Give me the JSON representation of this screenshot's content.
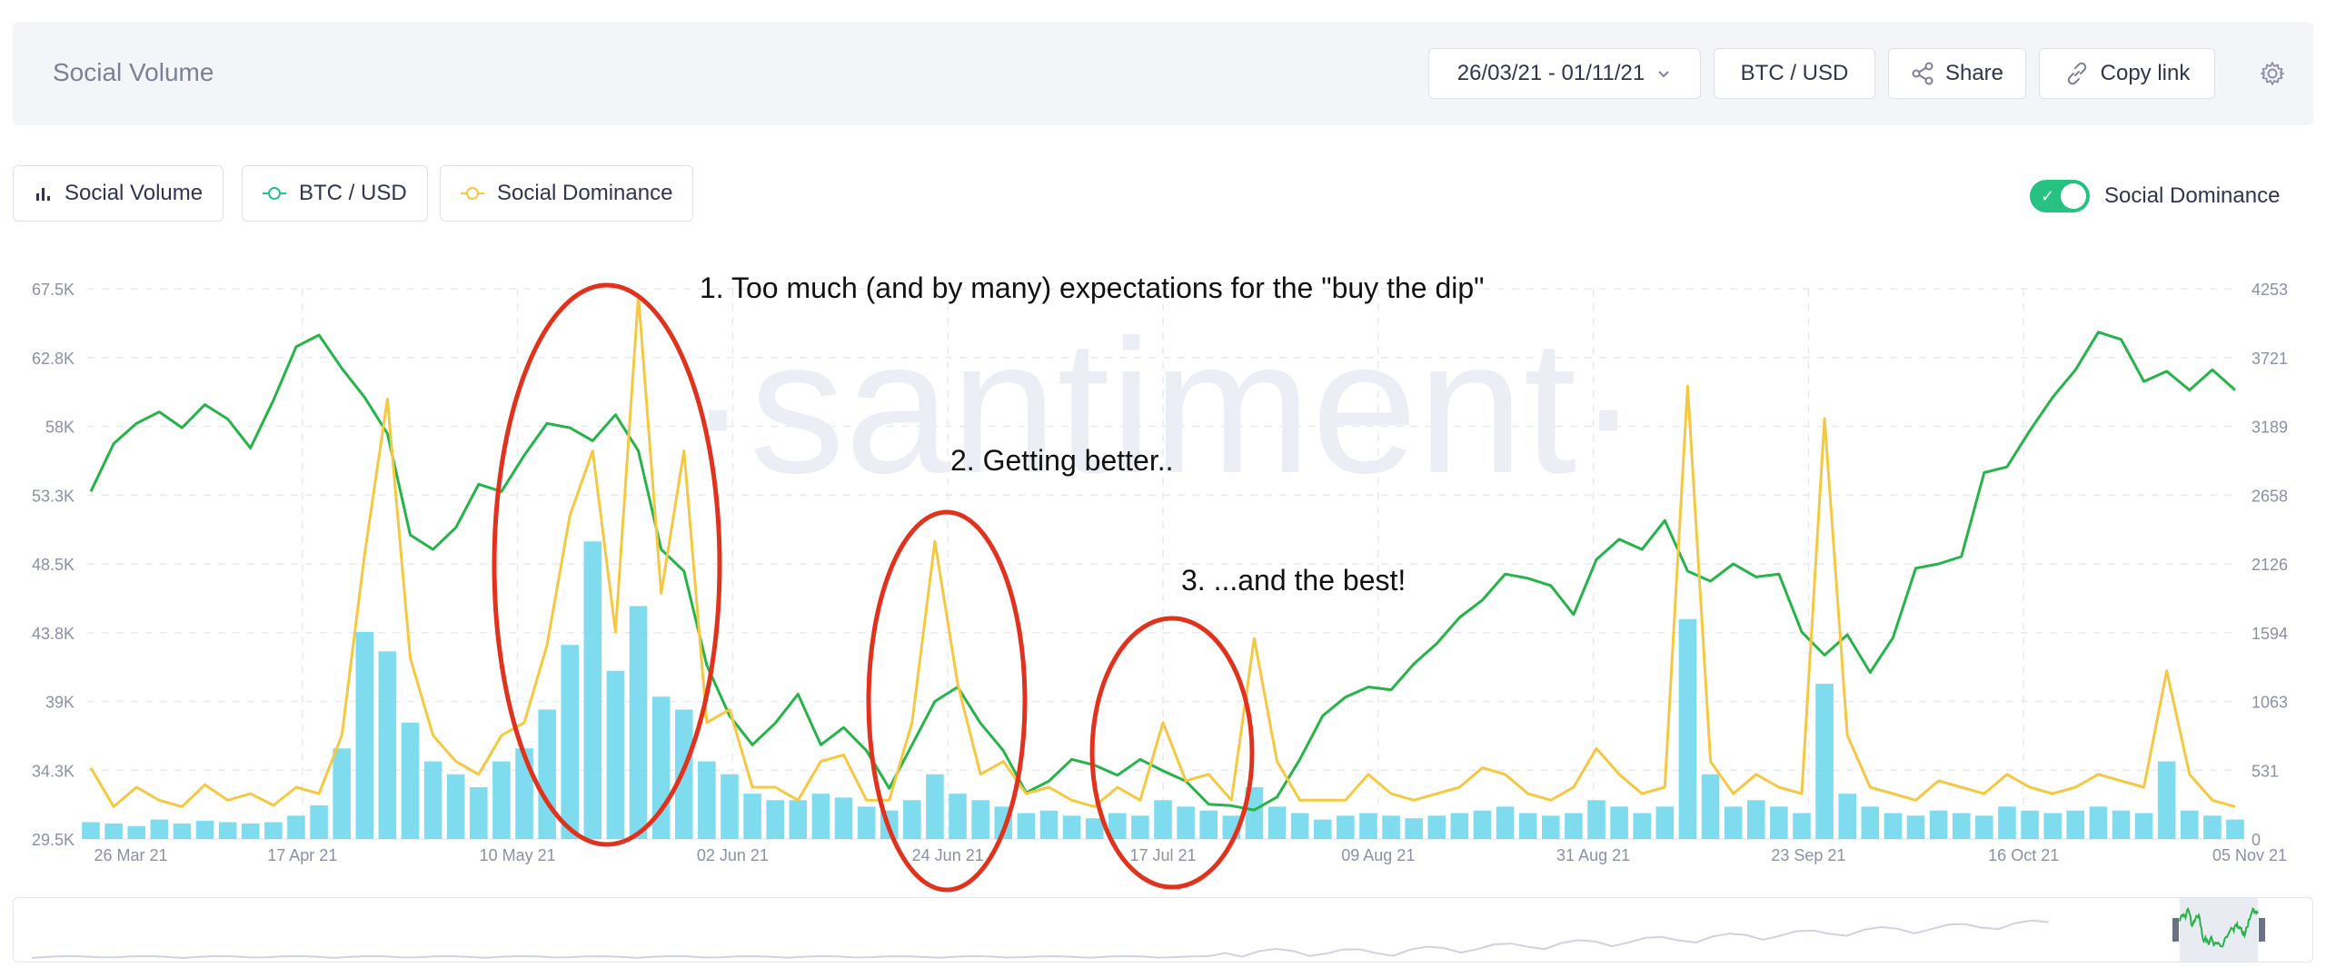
{
  "header": {
    "title": "Social Volume",
    "date_range": "26/03/21 - 01/11/21",
    "pair": "BTC / USD",
    "share_label": "Share",
    "copy_link_label": "Copy link"
  },
  "legend": {
    "items": [
      {
        "label": "Social Volume",
        "icon": "bar-chart-icon"
      },
      {
        "label": "BTC / USD",
        "icon": "line-marker-icon",
        "color": "#26c281"
      },
      {
        "label": "Social Dominance",
        "icon": "line-marker-icon",
        "color": "#f5c842"
      }
    ],
    "toggle_label": "Social Dominance"
  },
  "watermark": "·santiment·",
  "colors": {
    "social_volume": "#68d6ec",
    "btc_usd": "#26b34a",
    "social_dominance": "#f5c842",
    "annotation": "#e0321c"
  },
  "chart_data": {
    "type": "line",
    "x_labels": [
      "26 Mar 21",
      "17 Apr 21",
      "10 May 21",
      "02 Jun 21",
      "24 Jun 21",
      "17 Jul 21",
      "09 Aug 21",
      "31 Aug 21",
      "23 Sep 21",
      "16 Oct 21",
      "05 Nov 21"
    ],
    "y_left_ticks": [
      "67.5K",
      "62.8K",
      "58K",
      "53.3K",
      "48.5K",
      "43.8K",
      "39K",
      "34.3K",
      "29.5K"
    ],
    "y_right_ticks": [
      "4253",
      "3721",
      "3189",
      "2658",
      "2126",
      "1594",
      "1063",
      "531",
      "0"
    ],
    "ylim_left": [
      29500,
      67500
    ],
    "ylim_right": [
      0,
      4253
    ],
    "series": [
      {
        "name": "BTC / USD",
        "axis": "left",
        "values": [
          53500,
          56800,
          58200,
          59000,
          57900,
          59500,
          58500,
          56500,
          59800,
          63500,
          64300,
          62000,
          60000,
          57500,
          50500,
          49500,
          51000,
          54000,
          53500,
          56000,
          58200,
          57900,
          57000,
          58800,
          56300,
          49500,
          48000,
          41500,
          38000,
          36000,
          37500,
          39500,
          36000,
          37200,
          35600,
          33000,
          36000,
          39000,
          40000,
          37500,
          35600,
          32700,
          33500,
          35000,
          34600,
          33900,
          35000,
          34200,
          33500,
          31900,
          31800,
          31500,
          32400,
          35000,
          38000,
          39300,
          40000,
          39800,
          41600,
          43000,
          44800,
          46000,
          47800,
          47500,
          47000,
          45000,
          48800,
          50200,
          49500,
          51500,
          48000,
          47300,
          48500,
          47600,
          47800,
          43800,
          42200,
          43600,
          41000,
          43400,
          48200,
          48500,
          49000,
          54800,
          55200,
          57700,
          60000,
          61900,
          64500,
          64000,
          61100,
          61800,
          60500,
          61900,
          60500
        ],
        "dates_span": "26 Mar 21 - 01 Nov 21"
      },
      {
        "name": "Social Dominance",
        "axis": "right",
        "values": [
          550,
          250,
          400,
          300,
          250,
          420,
          300,
          350,
          260,
          400,
          350,
          800,
          2200,
          3400,
          1400,
          800,
          600,
          500,
          800,
          900,
          1500,
          2500,
          3000,
          1600,
          4200,
          1900,
          3000,
          900,
          1000,
          400,
          400,
          300,
          600,
          650,
          300,
          300,
          900,
          2300,
          1200,
          500,
          600,
          350,
          400,
          300,
          250,
          400,
          300,
          900,
          450,
          500,
          300,
          1550,
          600,
          300,
          300,
          300,
          500,
          350,
          300,
          350,
          400,
          550,
          500,
          350,
          300,
          400,
          700,
          500,
          350,
          400,
          3500,
          600,
          350,
          500,
          400,
          350,
          3250,
          800,
          400,
          350,
          300,
          450,
          400,
          350,
          500,
          400,
          350,
          400,
          500,
          450,
          400,
          1300,
          500,
          300,
          250
        ],
        "dates_span": "26 Mar 21 - 01 Nov 21"
      },
      {
        "name": "Social Volume",
        "type": "bar",
        "axis": "right",
        "values": [
          130,
          120,
          100,
          150,
          120,
          140,
          130,
          120,
          130,
          180,
          260,
          700,
          1600,
          1450,
          900,
          600,
          500,
          400,
          600,
          700,
          1000,
          1500,
          2300,
          1300,
          1800,
          1100,
          1000,
          600,
          500,
          350,
          300,
          300,
          350,
          320,
          250,
          220,
          300,
          500,
          350,
          300,
          250,
          200,
          220,
          180,
          160,
          200,
          180,
          300,
          250,
          220,
          180,
          400,
          250,
          200,
          150,
          180,
          200,
          180,
          160,
          180,
          200,
          220,
          250,
          200,
          180,
          200,
          300,
          250,
          200,
          250,
          1700,
          500,
          250,
          300,
          250,
          200,
          1200,
          350,
          250,
          200,
          180,
          220,
          200,
          180,
          250,
          220,
          200,
          220,
          250,
          220,
          200,
          600,
          220,
          180,
          150
        ],
        "dates_span": "26 Mar 21 - 01 Nov 21"
      }
    ]
  },
  "annotations": [
    {
      "text": "1. Too much (and by many) expectations for the \"buy the dip\""
    },
    {
      "text": "2. Getting better.."
    },
    {
      "text": "3. ...and the best!"
    }
  ]
}
